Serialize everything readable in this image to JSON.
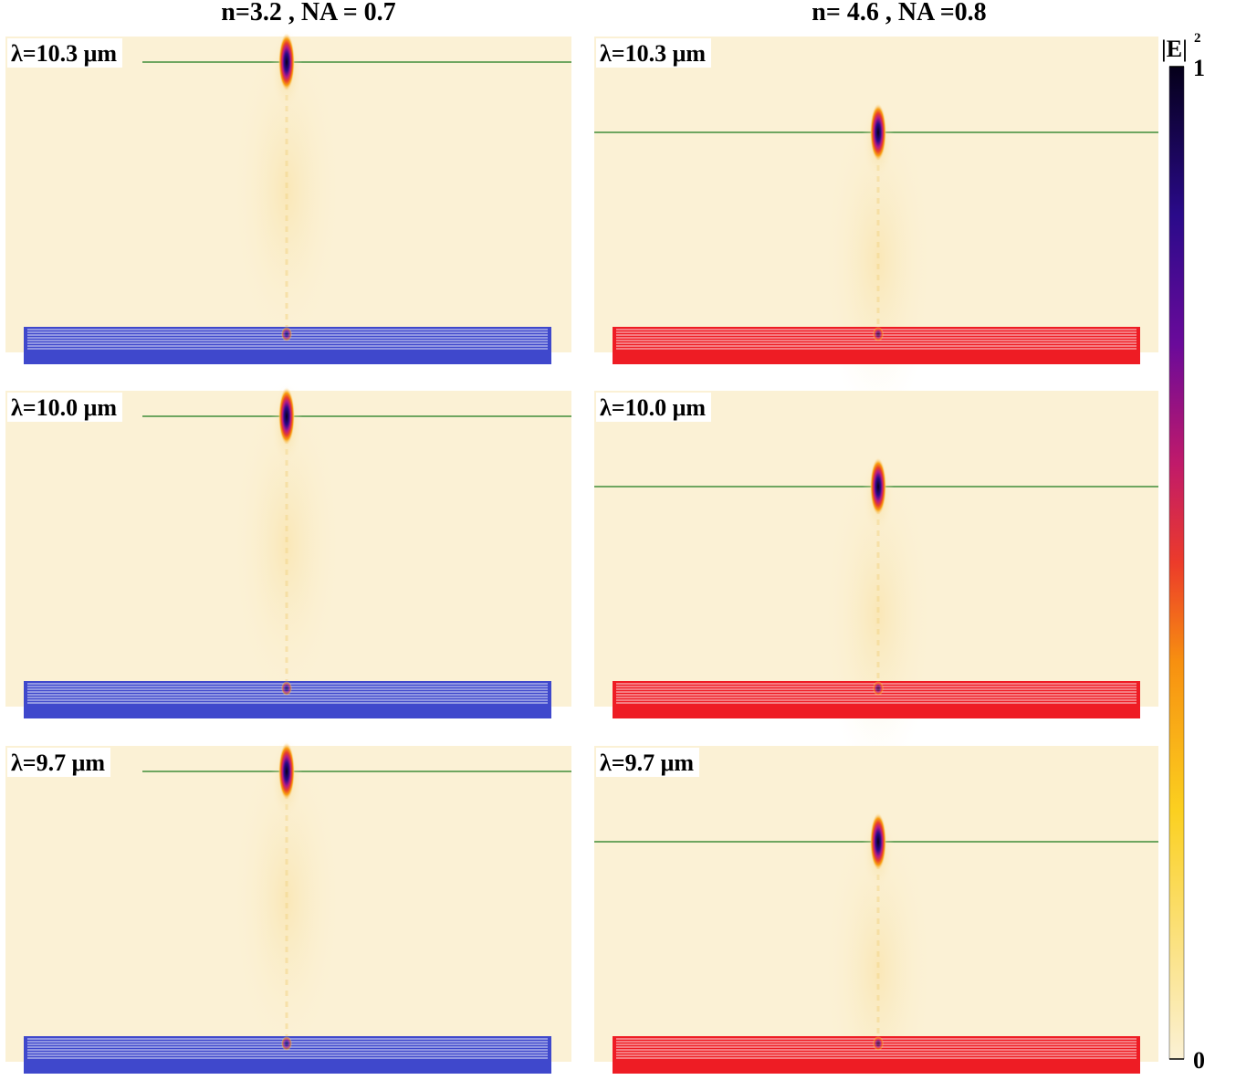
{
  "columns": [
    {
      "title": "n=3.2 ,  NA = 0.7",
      "panels": [
        {
          "label": "λ=10.3 μm"
        },
        {
          "label": "λ=10.0 μm"
        },
        {
          "label": "λ=9.7 μm"
        }
      ]
    },
    {
      "title": "n= 4.6 ,  NA =0.8",
      "panels": [
        {
          "label": "λ=10.3 μm"
        },
        {
          "label": "λ=10.0 μm"
        },
        {
          "label": "λ=9.7 μm"
        }
      ]
    }
  ],
  "colorbar": {
    "label": "|E|",
    "exponent": "2",
    "ticks": [
      0,
      1
    ]
  }
}
